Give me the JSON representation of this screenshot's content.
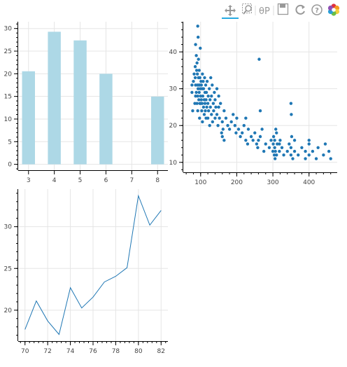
{
  "toolbar": {
    "tools": [
      {
        "name": "pan",
        "icon": "pan-icon",
        "active": true
      },
      {
        "name": "box-zoom",
        "icon": "box-zoom-icon",
        "active": false
      },
      {
        "name": "wheel-zoom",
        "icon": "wheel-zoom-icon",
        "active": false
      },
      {
        "name": "save",
        "icon": "save-icon",
        "active": false
      },
      {
        "name": "reset",
        "icon": "reset-icon",
        "active": false
      },
      {
        "name": "help",
        "icon": "help-icon",
        "active": false
      },
      {
        "name": "bokeh-logo",
        "icon": "bokeh-logo-icon",
        "active": false
      }
    ],
    "accent_color": "#26aae1"
  },
  "chart_data": [
    {
      "type": "bar",
      "categories": [
        "3",
        "4",
        "5",
        "6",
        "7",
        "8"
      ],
      "values": [
        20.55,
        29.28,
        27.37,
        19.99,
        null,
        14.96
      ],
      "xticks": [
        "3",
        "4",
        "5",
        "6",
        "7",
        "8"
      ],
      "yticks": [
        "0",
        "5",
        "10",
        "15",
        "20",
        "25",
        "30"
      ],
      "ylim": [
        -1.3,
        31.5
      ],
      "xlim": [
        2.6,
        8.4
      ],
      "color": "#add8e6",
      "grid": true
    },
    {
      "type": "scatter",
      "xticks": [
        "100",
        "200",
        "300",
        "400"
      ],
      "yticks": [
        "10",
        "20",
        "30",
        "40"
      ],
      "xlim": [
        52,
        478
      ],
      "ylim": [
        7.3,
        48.2
      ],
      "color": "#1f77b4",
      "grid": true,
      "points": [
        [
          76,
          29
        ],
        [
          76,
          31
        ],
        [
          78,
          24
        ],
        [
          80,
          32
        ],
        [
          82,
          34
        ],
        [
          84,
          26
        ],
        [
          85,
          33
        ],
        [
          85,
          36
        ],
        [
          86,
          31
        ],
        [
          86,
          28
        ],
        [
          88,
          39
        ],
        [
          88,
          29
        ],
        [
          89,
          35
        ],
        [
          90,
          26
        ],
        [
          90,
          37
        ],
        [
          91,
          31
        ],
        [
          91,
          34
        ],
        [
          92,
          28
        ],
        [
          92,
          24
        ],
        [
          93,
          30
        ],
        [
          93,
          44
        ],
        [
          94,
          33
        ],
        [
          94,
          38
        ],
        [
          95,
          27
        ],
        [
          95,
          31
        ],
        [
          96,
          29
        ],
        [
          96,
          35
        ],
        [
          97,
          22
        ],
        [
          97,
          31
        ],
        [
          98,
          26
        ],
        [
          98,
          33
        ],
        [
          99,
          30
        ],
        [
          100,
          26
        ],
        [
          100,
          28
        ],
        [
          101,
          32
        ],
        [
          102,
          27
        ],
        [
          102,
          31
        ],
        [
          103,
          24
        ],
        [
          104,
          30
        ],
        [
          104,
          26
        ],
        [
          105,
          34
        ],
        [
          105,
          21
        ],
        [
          106,
          28
        ],
        [
          107,
          32
        ],
        [
          108,
          25
        ],
        [
          108,
          30
        ],
        [
          110,
          27
        ],
        [
          110,
          23
        ],
        [
          111,
          33
        ],
        [
          112,
          26
        ],
        [
          112,
          29
        ],
        [
          113,
          24
        ],
        [
          114,
          31
        ],
        [
          115,
          22
        ],
        [
          115,
          27
        ],
        [
          116,
          29
        ],
        [
          117,
          25
        ],
        [
          118,
          32
        ],
        [
          120,
          26
        ],
        [
          120,
          22
        ],
        [
          121,
          28
        ],
        [
          122,
          24
        ],
        [
          124,
          30
        ],
        [
          125,
          20
        ],
        [
          126,
          27
        ],
        [
          127,
          25
        ],
        [
          128,
          33
        ],
        [
          130,
          23
        ],
        [
          130,
          28
        ],
        [
          132,
          31
        ],
        [
          133,
          21
        ],
        [
          135,
          26
        ],
        [
          136,
          24
        ],
        [
          138,
          29
        ],
        [
          140,
          27
        ],
        [
          140,
          22
        ],
        [
          142,
          25
        ],
        [
          145,
          23
        ],
        [
          145,
          30
        ],
        [
          148,
          20
        ],
        [
          150,
          28
        ],
        [
          150,
          25
        ],
        [
          152,
          22
        ],
        [
          155,
          26
        ],
        [
          158,
          18
        ],
        [
          160,
          21
        ],
        [
          160,
          17
        ],
        [
          162,
          19
        ],
        [
          165,
          24
        ],
        [
          165,
          16
        ],
        [
          170,
          22
        ],
        [
          175,
          20
        ],
        [
          180,
          19
        ],
        [
          185,
          21
        ],
        [
          190,
          23
        ],
        [
          195,
          20
        ],
        [
          198,
          18
        ],
        [
          200,
          22
        ],
        [
          205,
          19
        ],
        [
          210,
          17
        ],
        [
          215,
          18
        ],
        [
          220,
          20
        ],
        [
          225,
          16
        ],
        [
          225,
          22
        ],
        [
          230,
          15
        ],
        [
          232,
          19
        ],
        [
          240,
          17
        ],
        [
          245,
          16
        ],
        [
          250,
          18
        ],
        [
          255,
          15
        ],
        [
          258,
          14
        ],
        [
          260,
          16
        ],
        [
          265,
          17
        ],
        [
          265,
          24
        ],
        [
          270,
          19
        ],
        [
          275,
          13
        ],
        [
          280,
          15
        ],
        [
          290,
          14
        ],
        [
          295,
          16
        ],
        [
          300,
          13
        ],
        [
          301,
          15
        ],
        [
          302,
          17
        ],
        [
          304,
          12
        ],
        [
          305,
          14
        ],
        [
          305,
          16
        ],
        [
          306,
          11
        ],
        [
          307,
          13
        ],
        [
          308,
          19
        ],
        [
          310,
          12
        ],
        [
          310,
          18
        ],
        [
          312,
          15
        ],
        [
          318,
          13
        ],
        [
          320,
          16
        ],
        [
          325,
          14
        ],
        [
          330,
          12
        ],
        [
          340,
          13
        ],
        [
          345,
          15
        ],
        [
          350,
          26
        ],
        [
          350,
          14
        ],
        [
          350,
          12
        ],
        [
          351,
          23
        ],
        [
          352,
          17
        ],
        [
          355,
          11
        ],
        [
          360,
          13
        ],
        [
          360,
          16
        ],
        [
          370,
          12
        ],
        [
          380,
          14
        ],
        [
          390,
          13
        ],
        [
          390,
          11
        ],
        [
          400,
          16
        ],
        [
          400,
          12
        ],
        [
          400,
          15
        ],
        [
          410,
          13
        ],
        [
          420,
          11
        ],
        [
          425,
          14
        ],
        [
          440,
          12
        ],
        [
          445,
          15
        ],
        [
          455,
          13
        ],
        [
          460,
          11
        ],
        [
          262,
          38
        ],
        [
          318,
          15
        ],
        [
          99,
          41
        ],
        [
          92,
          47
        ],
        [
          86,
          42
        ]
      ]
    },
    {
      "type": "line",
      "x": [
        70,
        71,
        72,
        73,
        74,
        75,
        76,
        77,
        78,
        79,
        80,
        81,
        82
      ],
      "y": [
        17.69,
        21.11,
        18.71,
        17.1,
        22.7,
        20.27,
        21.57,
        23.38,
        24.06,
        25.09,
        33.7,
        30.19,
        31.95
      ],
      "xticks": [
        "70",
        "72",
        "74",
        "76",
        "78",
        "80",
        "82"
      ],
      "yticks": [
        "20",
        "25",
        "30"
      ],
      "xlim": [
        69.4,
        82.6
      ],
      "ylim": [
        16.3,
        34.5
      ],
      "color": "#1f77b4",
      "grid": true
    }
  ]
}
